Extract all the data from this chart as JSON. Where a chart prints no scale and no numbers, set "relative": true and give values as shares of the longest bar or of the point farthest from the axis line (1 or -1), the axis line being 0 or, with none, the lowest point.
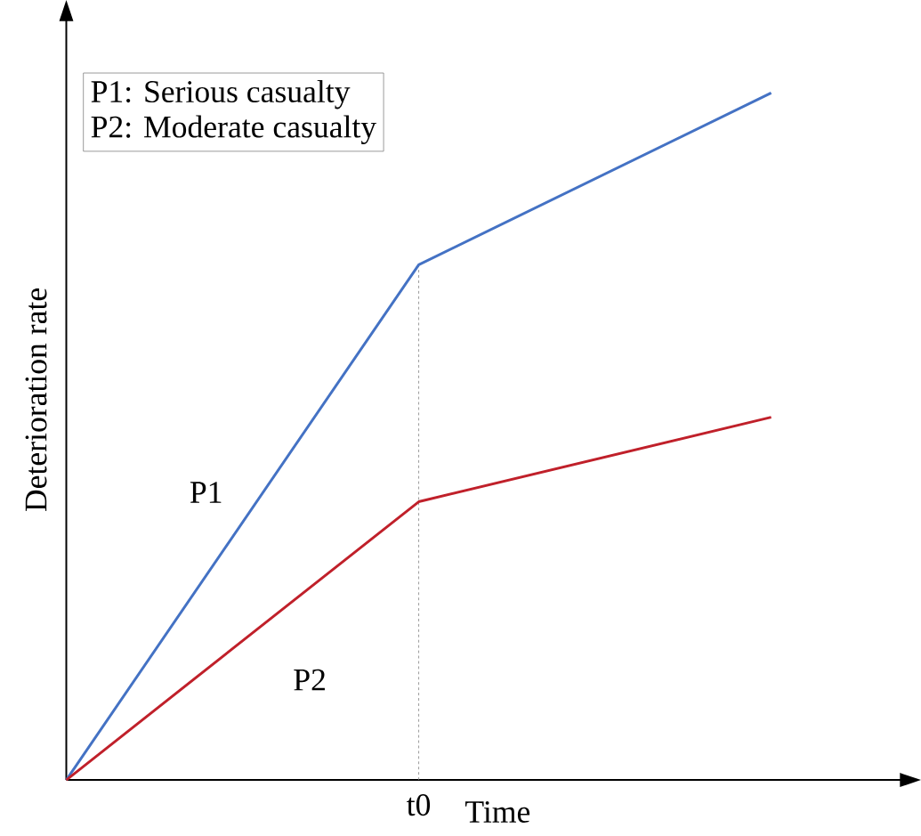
{
  "chart_data": {
    "type": "line",
    "relative": true,
    "xlabel": "Time",
    "ylabel": "Deterioration rate",
    "categories": [
      null,
      null,
      null
    ],
    "series": [
      {
        "name": "P1",
        "color": "#4472c4",
        "values": [
          0,
          0.75,
          1
        ]
      },
      {
        "name": "P2",
        "color": "#c0202a",
        "values": [
          0,
          0.405,
          0.528
        ]
      }
    ],
    "annotations": [
      "P1: Serious casualty",
      "P2: Moderate casualty",
      "t0"
    ],
    "legend": false
  }
}
